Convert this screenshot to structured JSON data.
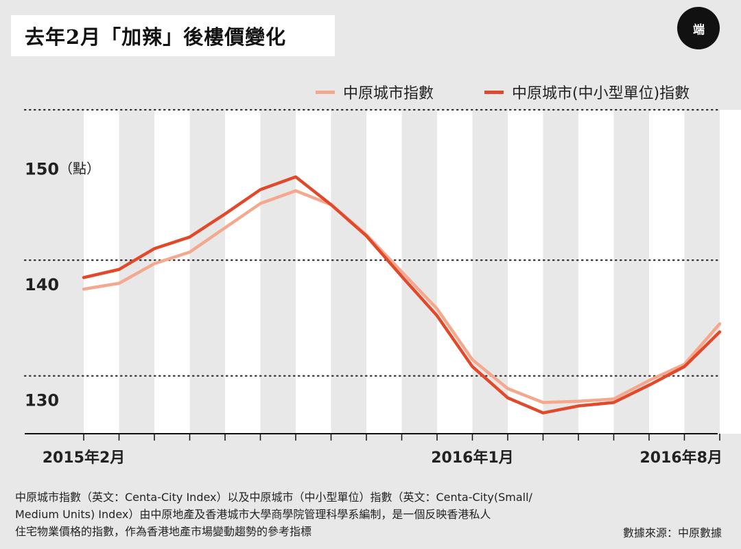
{
  "header": {
    "title": "去年2月「加辣」後樓價變化",
    "logo_text": "端"
  },
  "colors": {
    "series_light": "#f4a88e",
    "series_dark": "#e2492a",
    "stripe": "#ffffff",
    "background": "#e8e8e8"
  },
  "chart_data": {
    "type": "line",
    "title": "去年2月「加辣」後樓價變化",
    "ylabel": "點",
    "ylim": [
      125,
      153
    ],
    "yticks": [
      150,
      140,
      130
    ],
    "ytick_labels": [
      "150",
      "140",
      "130"
    ],
    "ytick_unit": "（點）",
    "gridlines": [
      153,
      140,
      130
    ],
    "x_count": 19,
    "x_labels": [
      {
        "index": 0,
        "label": "2015年2月"
      },
      {
        "index": 11,
        "label": "2016年1月"
      },
      {
        "index": 18,
        "label": "2016年8月"
      }
    ],
    "legend_position": "top-right",
    "series": [
      {
        "name": "中原城市指數",
        "values": [
          137.5,
          138.0,
          139.7,
          140.7,
          142.8,
          144.9,
          146.0,
          144.8,
          142.2,
          139.0,
          135.8,
          131.4,
          128.9,
          127.7,
          127.8,
          128.0,
          129.6,
          131.0,
          134.5
        ]
      },
      {
        "name": "中原城市(中小型單位)指數",
        "values": [
          138.5,
          139.2,
          141.0,
          142.0,
          144.0,
          146.1,
          147.2,
          144.8,
          142.1,
          138.6,
          135.2,
          130.8,
          128.1,
          126.8,
          127.4,
          127.7,
          129.2,
          130.8,
          133.8
        ]
      }
    ]
  },
  "footnote": {
    "line1": "中原城市指數（英文：Centa-City Index）以及中原城市（中小型單位）指數（英文：Centa-City(Small/",
    "line2": "Medium Units) Index）由中原地產及香港城市大學商學院管理科學系編制，是一個反映香港私人",
    "line3": "住宅物業價格的指數，作為香港地產市場變動趨勢的參考指標"
  },
  "source": "數據來源：中原數據"
}
